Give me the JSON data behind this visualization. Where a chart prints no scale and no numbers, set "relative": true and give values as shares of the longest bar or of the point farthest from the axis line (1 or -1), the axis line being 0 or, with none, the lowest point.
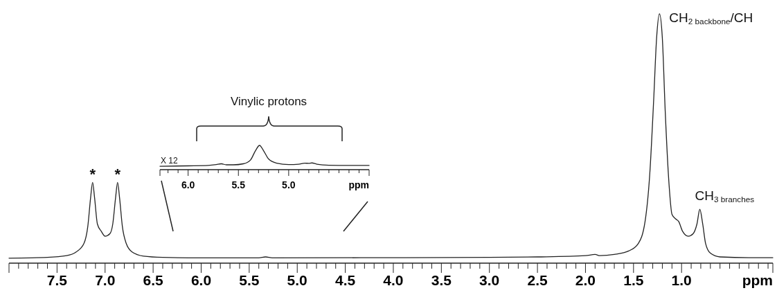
{
  "chart_data": [
    {
      "type": "line",
      "relative": true,
      "xlim": [
        8.0,
        0.05
      ],
      "xlabel": "ppm",
      "xticks": [
        {
          "value": 7.9,
          "label": null
        },
        {
          "value": 7.8,
          "label": null
        },
        {
          "value": 7.7,
          "label": null
        },
        {
          "value": 7.6,
          "label": null
        },
        7.5,
        {
          "value": 7.4,
          "label": null
        },
        {
          "value": 7.3,
          "label": null
        },
        {
          "value": 7.2,
          "label": null
        },
        {
          "value": 7.1,
          "label": null
        },
        {
          "value": 7.0,
          "label": "7.0"
        },
        {
          "value": 6.9,
          "label": null
        },
        {
          "value": 6.8,
          "label": null
        },
        {
          "value": 6.7,
          "label": null
        },
        {
          "value": 6.6,
          "label": null
        },
        6.5,
        {
          "value": 6.4,
          "label": null
        },
        {
          "value": 6.3,
          "label": null
        },
        {
          "value": 6.2,
          "label": null
        },
        {
          "value": 6.1,
          "label": null
        },
        {
          "value": 6.0,
          "label": "6.0"
        },
        {
          "value": 5.9,
          "label": null
        },
        {
          "value": 5.8,
          "label": null
        },
        {
          "value": 5.7,
          "label": null
        },
        {
          "value": 5.6,
          "label": null
        },
        5.5,
        {
          "value": 5.4,
          "label": null
        },
        {
          "value": 5.3,
          "label": null
        },
        {
          "value": 5.2,
          "label": null
        },
        {
          "value": 5.1,
          "label": null
        },
        {
          "value": 5.0,
          "label": "5.0"
        },
        {
          "value": 4.9,
          "label": null
        },
        {
          "value": 4.8,
          "label": null
        },
        {
          "value": 4.7,
          "label": null
        },
        {
          "value": 4.6,
          "label": null
        },
        4.5,
        {
          "value": 4.4,
          "label": null
        },
        {
          "value": 4.3,
          "label": null
        },
        {
          "value": 4.2,
          "label": null
        },
        {
          "value": 4.1,
          "label": null
        },
        {
          "value": 4.0,
          "label": "4.0"
        },
        {
          "value": 3.9,
          "label": null
        },
        {
          "value": 3.8,
          "label": null
        },
        {
          "value": 3.7,
          "label": null
        },
        {
          "value": 3.6,
          "label": null
        },
        3.5,
        {
          "value": 3.4,
          "label": null
        },
        {
          "value": 3.3,
          "label": null
        },
        {
          "value": 3.2,
          "label": null
        },
        {
          "value": 3.1,
          "label": null
        },
        {
          "value": 3.0,
          "label": "3.0"
        },
        {
          "value": 2.9,
          "label": null
        },
        {
          "value": 2.8,
          "label": null
        },
        {
          "value": 2.7,
          "label": null
        },
        {
          "value": 2.6,
          "label": null
        },
        2.5,
        {
          "value": 2.4,
          "label": null
        },
        {
          "value": 2.3,
          "label": null
        },
        {
          "value": 2.2,
          "label": null
        },
        {
          "value": 2.1,
          "label": null
        },
        {
          "value": 2.0,
          "label": "2.0"
        },
        {
          "value": 1.9,
          "label": null
        },
        {
          "value": 1.8,
          "label": null
        },
        {
          "value": 1.7,
          "label": null
        },
        {
          "value": 1.6,
          "label": null
        },
        1.5,
        {
          "value": 1.4,
          "label": null
        },
        {
          "value": 1.3,
          "label": null
        },
        {
          "value": 1.2,
          "label": null
        },
        {
          "value": 1.1,
          "label": null
        },
        {
          "value": 1.0,
          "label": "1.0"
        },
        {
          "value": 0.9,
          "label": null
        },
        {
          "value": 0.8,
          "label": null
        },
        {
          "value": 0.7,
          "label": null
        },
        {
          "value": 0.6,
          "label": null
        },
        {
          "value": 0.5,
          "label": null
        },
        {
          "value": 0.4,
          "label": null
        },
        {
          "value": 0.3,
          "label": null
        },
        {
          "value": 0.2,
          "label": null
        },
        {
          "value": 0.1,
          "label": null
        }
      ],
      "x": [
        8.0,
        7.6,
        7.4,
        7.3,
        7.22,
        7.18,
        7.15,
        7.13,
        7.11,
        7.08,
        7.04,
        7.0,
        6.95,
        6.92,
        6.89,
        6.87,
        6.85,
        6.82,
        6.78,
        6.72,
        6.6,
        6.4,
        6.0,
        5.4,
        5.33,
        5.26,
        4.0,
        3.0,
        2.5,
        2.0,
        1.9,
        1.85,
        1.7,
        1.55,
        1.45,
        1.38,
        1.33,
        1.29,
        1.26,
        1.23,
        1.2,
        1.17,
        1.13,
        1.1,
        1.06,
        1.03,
        0.99,
        0.93,
        0.88,
        0.84,
        0.81,
        0.78,
        0.75,
        0.7,
        0.6,
        0.3,
        0.05
      ],
      "color": "#222222",
      "values": [
        0.02,
        0.023,
        0.03,
        0.045,
        0.079,
        0.147,
        0.265,
        0.324,
        0.265,
        0.157,
        0.128,
        0.108,
        0.118,
        0.157,
        0.265,
        0.324,
        0.265,
        0.147,
        0.079,
        0.045,
        0.028,
        0.023,
        0.021,
        0.021,
        0.025,
        0.021,
        0.022,
        0.023,
        0.025,
        0.03,
        0.035,
        0.03,
        0.035,
        0.049,
        0.079,
        0.167,
        0.363,
        0.657,
        0.902,
        1.0,
        0.902,
        0.608,
        0.314,
        0.196,
        0.177,
        0.167,
        0.128,
        0.108,
        0.118,
        0.157,
        0.216,
        0.157,
        0.079,
        0.04,
        0.025,
        0.022,
        0.022
      ],
      "annotations": [
        {
          "text": "*",
          "x": 7.13,
          "y": 0.324
        },
        {
          "text": "*",
          "x": 6.87,
          "y": 0.324
        },
        {
          "text": "CH$_{2 backbone}$/CH",
          "x": 1.23,
          "y": 1.0
        },
        {
          "text": "CH$_{3 branches}$",
          "x": 0.81,
          "y": 0.216
        }
      ]
    },
    {
      "type": "line",
      "relative": true,
      "xlim": [
        6.28,
        4.2
      ],
      "xlabel": "ppm",
      "xticks": [
        {
          "value": 6.2,
          "label": null
        },
        {
          "value": 6.1,
          "label": null
        },
        {
          "value": 6.0,
          "label": "6.0"
        },
        {
          "value": 5.9,
          "label": null
        },
        {
          "value": 5.8,
          "label": null
        },
        {
          "value": 5.7,
          "label": null
        },
        {
          "value": 5.6,
          "label": null
        },
        5.5,
        {
          "value": 5.4,
          "label": null
        },
        {
          "value": 5.3,
          "label": null
        },
        {
          "value": 5.2,
          "label": null
        },
        {
          "value": 5.1,
          "label": null
        },
        {
          "value": 5.0,
          "label": "5.0"
        },
        {
          "value": 4.9,
          "label": null
        },
        {
          "value": 4.8,
          "label": null
        },
        {
          "value": 4.7,
          "label": null
        },
        {
          "value": 4.6,
          "label": null
        },
        {
          "value": 4.5,
          "label": null
        },
        {
          "value": 4.4,
          "label": null
        },
        {
          "value": 4.3,
          "label": null
        }
      ],
      "x": [
        6.28,
        6.0,
        5.8,
        5.72,
        5.67,
        5.62,
        5.55,
        5.45,
        5.38,
        5.33,
        5.29,
        5.25,
        5.2,
        5.12,
        5.0,
        4.9,
        4.84,
        4.8,
        4.77,
        4.72,
        4.6,
        4.4,
        4.2
      ],
      "color": "#222222",
      "values": [
        0.14,
        0.157,
        0.174,
        0.209,
        0.243,
        0.2,
        0.2,
        0.243,
        0.398,
        0.785,
        1.0,
        0.785,
        0.441,
        0.269,
        0.209,
        0.226,
        0.269,
        0.26,
        0.278,
        0.226,
        0.183,
        0.174,
        0.174
      ],
      "annotations": [
        "X 12",
        "Vinylic protons"
      ]
    }
  ]
}
